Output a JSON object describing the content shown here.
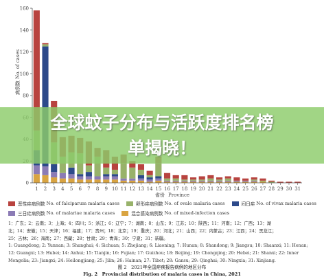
{
  "chart_data": {
    "type": "bar",
    "stacked": true,
    "ylabel": "病例数 No. of cases",
    "xlabel_cn": "省份",
    "xlabel_en": "Province",
    "ylim": [
      0,
      160
    ],
    "yticks": [
      0,
      20,
      40,
      60,
      80,
      100,
      120,
      140,
      160
    ],
    "categories": [
      "1",
      "2",
      "3",
      "4",
      "5",
      "6",
      "7",
      "8",
      "9",
      "10",
      "11",
      "12",
      "13",
      "14",
      "15",
      "16",
      "17",
      "18",
      "19",
      "20",
      "21",
      "22",
      "23",
      "24",
      "25",
      "26",
      "27",
      "28",
      "29",
      "30",
      "31"
    ],
    "series": [
      {
        "name_cn": "恶性疟病例数",
        "name": "No. of falciparum malaria cases",
        "color": "#b8433f",
        "values": [
          110,
          1,
          38,
          18,
          15,
          14,
          22,
          8,
          16,
          12,
          8,
          6,
          5,
          4,
          6,
          5,
          3,
          4,
          2,
          3,
          3,
          2,
          2,
          3,
          2,
          2,
          2,
          1,
          1,
          1,
          1
        ]
      },
      {
        "name_cn": "卵形疟病例数",
        "name": "No. of ovale malaria cases",
        "color": "#98b26a",
        "values": [
          18,
          2,
          20,
          15,
          14,
          19,
          6,
          18,
          6,
          4,
          14,
          10,
          5,
          2,
          12,
          2,
          2,
          1,
          1,
          1,
          2,
          1,
          2,
          0,
          0,
          1,
          1,
          1,
          0,
          0,
          0
        ]
      },
      {
        "name_cn": "间日疟",
        "name": "No. of vivax malaria cases",
        "color": "#2d4a8a",
        "values": [
          14,
          110,
          7,
          0,
          6,
          2,
          4,
          0,
          2,
          2,
          0,
          0,
          3,
          2,
          2,
          0,
          0,
          0,
          0,
          0,
          0,
          0,
          0,
          0,
          0,
          0,
          0,
          0,
          0,
          0,
          0
        ]
      },
      {
        "name_cn": "三日疟病例数",
        "name": "No. of malariae malaria cases",
        "color": "#8b7bb5",
        "values": [
          8,
          8,
          5,
          5,
          4,
          3,
          3,
          3,
          3,
          3,
          2,
          2,
          2,
          2,
          2,
          1,
          1,
          1,
          1,
          1,
          1,
          1,
          1,
          1,
          1,
          1,
          0,
          0,
          0,
          0,
          0
        ]
      },
      {
        "name_cn": "混合感染病例数",
        "name": "No. of mixed-infection cases",
        "color": "#d9a441",
        "values": [
          8,
          7,
          5,
          4,
          4,
          3,
          3,
          3,
          3,
          3,
          2,
          2,
          2,
          1,
          2,
          1,
          1,
          1,
          1,
          1,
          1,
          1,
          1,
          1,
          1,
          1,
          1,
          0,
          0,
          0,
          0
        ]
      }
    ],
    "legend_position": "bottom"
  },
  "footnote": {
    "line1": "1：广东；2：云南；3：上海；4：四川；5：浙江；6：辽宁；7：湖南；8：山东；9：江苏；10：陕西；11：河南；12：广西；13：湖",
    "line2": "北；14：安徽；15：天津；16：福建；17：贵州；18：北京；19：重庆；20：河北；21：山西；22：内蒙古；23：江西；24：黑龙江；",
    "line3": "25：吉林；26：海南；27：西藏；28：甘肃；29：青海；30：宁夏；31：新疆。",
    "line4": "1: Guangdong; 2: Yunnan; 3: Shanghai; 4: Sichuan; 5: Zhejiang; 6: Liaoning; 7: Hunan; 8: Shandong; 9: Jiangsu; 10: Shaanxi; 11: Henan;",
    "line5": "12: Guangxi; 13: Hubei; 14: Anhui; 15: Tianjin; 16: Fujian; 17: Guizhou; 18: Beijing; 19: Chongqing; 20: Hebei; 21: Shanxi; 22: Inner",
    "line6": "Mongolia; 23: Jiangxi; 24: Heilongjiang; 25: Jilin; 26: Hainan; 27: Tibet; 28: Gansu; 29: Qinghai; 30: Ningxia; 31: Xinjiang."
  },
  "caption": {
    "cn": "图 2　2021年全国疟疾报告病例的地区分布",
    "en": "Fig. 2　Provincial distribution of malaria cases in China, 2021"
  },
  "banner": {
    "line1": "全球蚊子分布与活跃度排名榜",
    "line2": "单揭晓！",
    "color": "#8ccc6a"
  }
}
